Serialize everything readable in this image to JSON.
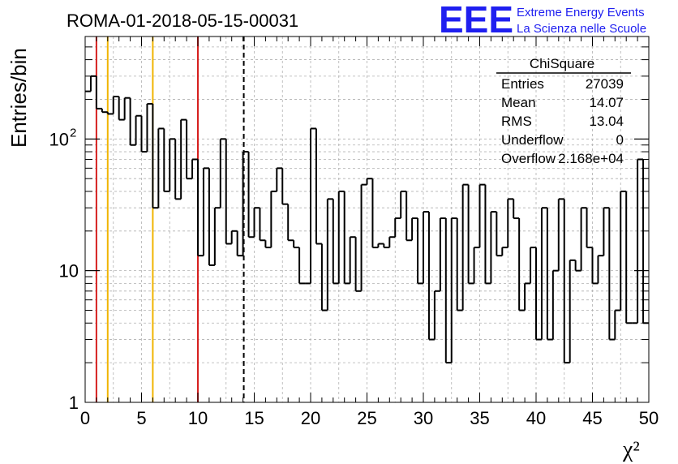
{
  "header": {
    "run_title": "ROMA-01-2018-05-15-00031",
    "logo": {
      "mark": "EEE",
      "line1": "Extreme Energy Events",
      "line2": "La Scienza nelle Scuole",
      "color": "#1f1ff0"
    }
  },
  "stats_box": {
    "title": "ChiSquare",
    "rows": [
      {
        "label": "Entries",
        "value": "27039"
      },
      {
        "label": "Mean",
        "value": "14.07"
      },
      {
        "label": "RMS",
        "value": "13.04"
      },
      {
        "label": "Underflow",
        "value": "0"
      },
      {
        "label": "Overflow",
        "value": "2.168e+04"
      }
    ]
  },
  "chart_data": {
    "type": "histogram",
    "xlabel": "χ²",
    "ylabel": "Entries/bin",
    "xlim": [
      0,
      50
    ],
    "ylim": [
      1,
      600
    ],
    "y_scale": "log",
    "grid": true,
    "bin_width": 0.5,
    "x_ticks": [
      "0",
      "5",
      "10",
      "15",
      "20",
      "25",
      "30",
      "35",
      "40",
      "45",
      "50"
    ],
    "y_ticks": [
      {
        "value": 1,
        "label": "1"
      },
      {
        "value": 10,
        "label": "10"
      },
      {
        "value": 100,
        "label": "10",
        "exponent": "2"
      }
    ],
    "values": [
      230,
      300,
      170,
      160,
      155,
      210,
      140,
      205,
      90,
      150,
      80,
      185,
      30,
      120,
      40,
      100,
      35,
      140,
      50,
      70,
      13,
      60,
      11,
      30,
      100,
      16,
      20,
      13,
      80,
      18,
      30,
      17,
      15,
      40,
      60,
      32,
      17,
      15,
      8,
      8,
      120,
      16,
      5,
      35,
      8,
      40,
      8,
      18,
      7,
      45,
      50,
      15,
      16,
      15,
      18,
      25,
      40,
      17,
      25,
      8,
      28,
      3,
      7,
      25,
      2,
      25,
      5,
      45,
      8,
      15,
      45,
      8,
      28,
      13,
      15,
      35,
      25,
      5,
      8,
      15,
      3,
      30,
      3,
      10,
      35,
      2,
      12,
      10,
      30,
      15,
      8,
      13,
      30,
      3,
      5,
      40,
      4,
      4,
      70,
      4
    ],
    "vertical_lines": [
      {
        "x": 1,
        "color": "#d6201f",
        "style": "solid"
      },
      {
        "x": 2,
        "color": "#f0b400",
        "style": "solid"
      },
      {
        "x": 6,
        "color": "#f0b400",
        "style": "solid"
      },
      {
        "x": 10,
        "color": "#d6201f",
        "style": "solid"
      },
      {
        "x": 14.07,
        "color": "#000000",
        "style": "dashed"
      }
    ]
  }
}
